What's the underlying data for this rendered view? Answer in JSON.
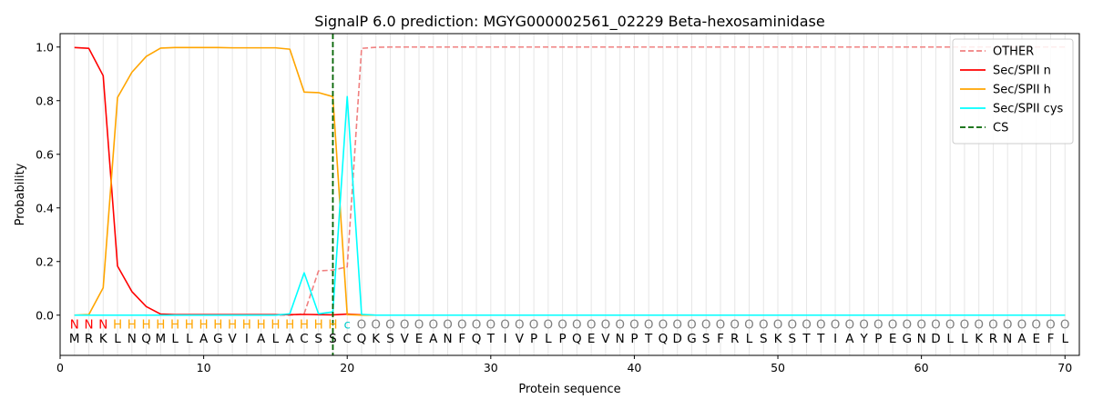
{
  "chart_data": {
    "type": "line",
    "title": "SignalP 6.0 prediction: MGYG000002561_02229 Beta-hexosaminidase",
    "xlabel": "Protein sequence",
    "ylabel": "Probability",
    "xlim": [
      0,
      71
    ],
    "ylim": [
      -0.15,
      1.05
    ],
    "x_ticks": [
      0,
      10,
      20,
      30,
      40,
      50,
      60,
      70
    ],
    "y_ticks": [
      0.0,
      0.2,
      0.4,
      0.6,
      0.8,
      1.0
    ],
    "y_tick_labels": [
      "0.0",
      "0.2",
      "0.4",
      "0.6",
      "0.8",
      "1.0"
    ],
    "x": [
      1,
      2,
      3,
      4,
      5,
      6,
      7,
      8,
      9,
      10,
      11,
      12,
      13,
      14,
      15,
      16,
      17,
      18,
      19,
      20,
      21,
      22,
      23,
      24,
      25,
      26,
      27,
      28,
      29,
      30,
      31,
      32,
      33,
      34,
      35,
      36,
      37,
      38,
      39,
      40,
      41,
      42,
      43,
      44,
      45,
      46,
      47,
      48,
      49,
      50,
      51,
      52,
      53,
      54,
      55,
      56,
      57,
      58,
      59,
      60,
      61,
      62,
      63,
      64,
      65,
      66,
      67,
      68,
      69,
      70
    ],
    "series": [
      {
        "name": "OTHER",
        "color": "#f08080",
        "dash": true,
        "values": [
          0,
          0,
          0,
          0,
          0,
          0,
          0,
          0,
          0,
          0,
          0,
          0,
          0,
          0,
          0,
          0,
          0.005,
          0.165,
          0.168,
          0.18,
          0.995,
          0.999,
          1,
          1,
          1,
          1,
          1,
          1,
          1,
          1,
          1,
          1,
          1,
          1,
          1,
          1,
          1,
          1,
          1,
          1,
          1,
          1,
          1,
          1,
          1,
          1,
          1,
          1,
          1,
          1,
          1,
          1,
          1,
          1,
          1,
          1,
          1,
          1,
          1,
          1,
          1,
          1,
          1,
          1,
          1,
          1,
          1,
          1,
          1,
          1
        ]
      },
      {
        "name": "Sec/SPII n",
        "color": "#ff0000",
        "dash": false,
        "values": [
          0.998,
          0.995,
          0.893,
          0.183,
          0.088,
          0.032,
          0.004,
          0.002,
          0.002,
          0.002,
          0.002,
          0.002,
          0.002,
          0.002,
          0.002,
          0.002,
          0.003,
          0.002,
          0.001,
          0.004,
          0.001,
          0,
          0,
          0,
          0,
          0,
          0,
          0,
          0,
          0,
          0,
          0,
          0,
          0,
          0,
          0,
          0,
          0,
          0,
          0,
          0,
          0,
          0,
          0,
          0,
          0,
          0,
          0,
          0,
          0,
          0,
          0,
          0,
          0,
          0,
          0,
          0,
          0,
          0,
          0,
          0,
          0,
          0,
          0,
          0,
          0,
          0,
          0,
          0,
          0
        ]
      },
      {
        "name": "Sec/SPII h",
        "color": "#ffa500",
        "dash": false,
        "values": [
          0,
          0.002,
          0.102,
          0.812,
          0.906,
          0.965,
          0.996,
          0.998,
          0.998,
          0.998,
          0.998,
          0.997,
          0.997,
          0.997,
          0.997,
          0.992,
          0.832,
          0.83,
          0.815,
          0.002,
          0,
          0,
          0,
          0,
          0,
          0,
          0,
          0,
          0,
          0,
          0,
          0,
          0,
          0,
          0,
          0,
          0,
          0,
          0,
          0,
          0,
          0,
          0,
          0,
          0,
          0,
          0,
          0,
          0,
          0,
          0,
          0,
          0,
          0,
          0,
          0,
          0,
          0,
          0,
          0,
          0,
          0,
          0,
          0,
          0,
          0,
          0,
          0,
          0,
          0
        ]
      },
      {
        "name": "Sec/SPII cys",
        "color": "#00ffff",
        "dash": false,
        "values": [
          0,
          0,
          0,
          0,
          0,
          0,
          0,
          0,
          0,
          0,
          0,
          0,
          0,
          0,
          0,
          0.005,
          0.158,
          0.005,
          0.012,
          0.815,
          0.003,
          0,
          0,
          0,
          0,
          0,
          0,
          0,
          0,
          0,
          0,
          0,
          0,
          0,
          0,
          0,
          0,
          0,
          0,
          0,
          0,
          0,
          0,
          0,
          0,
          0,
          0,
          0,
          0,
          0,
          0,
          0,
          0,
          0,
          0,
          0,
          0,
          0,
          0,
          0,
          0,
          0,
          0,
          0,
          0,
          0,
          0,
          0,
          0,
          0
        ]
      }
    ],
    "cs": {
      "name": "CS",
      "x": 19,
      "color": "#006400"
    },
    "legend_position": "top-right",
    "sequence": [
      "M",
      "R",
      "K",
      "L",
      "N",
      "Q",
      "M",
      "L",
      "L",
      "A",
      "G",
      "V",
      "I",
      "A",
      "L",
      "A",
      "C",
      "S",
      "S",
      "C",
      "Q",
      "K",
      "S",
      "V",
      "E",
      "A",
      "N",
      "F",
      "Q",
      "T",
      "I",
      "V",
      "P",
      "L",
      "P",
      "Q",
      "E",
      "V",
      "N",
      "P",
      "T",
      "Q",
      "D",
      "G",
      "S",
      "F",
      "R",
      "L",
      "S",
      "K",
      "S",
      "T",
      "T",
      "I",
      "A",
      "Y",
      "P",
      "E",
      "G",
      "N",
      "D",
      "L",
      "L",
      "K",
      "R",
      "N",
      "A",
      "E",
      "F",
      "L"
    ],
    "prediction": [
      "N",
      "N",
      "N",
      "H",
      "H",
      "H",
      "H",
      "H",
      "H",
      "H",
      "H",
      "H",
      "H",
      "H",
      "H",
      "H",
      "H",
      "H",
      "H",
      "c",
      "O",
      "O",
      "O",
      "O",
      "O",
      "O",
      "O",
      "O",
      "O",
      "O",
      "O",
      "O",
      "O",
      "O",
      "O",
      "O",
      "O",
      "O",
      "O",
      "O",
      "O",
      "O",
      "O",
      "O",
      "O",
      "O",
      "O",
      "O",
      "O",
      "O",
      "O",
      "O",
      "O",
      "O",
      "O",
      "O",
      "O",
      "O",
      "O",
      "O",
      "O",
      "O",
      "O",
      "O",
      "O",
      "O",
      "O",
      "O",
      "O",
      "O"
    ],
    "prediction_colors": {
      "N": "#ff0000",
      "H": "#ffa500",
      "c": "#00cccc",
      "O": "#808080"
    }
  }
}
